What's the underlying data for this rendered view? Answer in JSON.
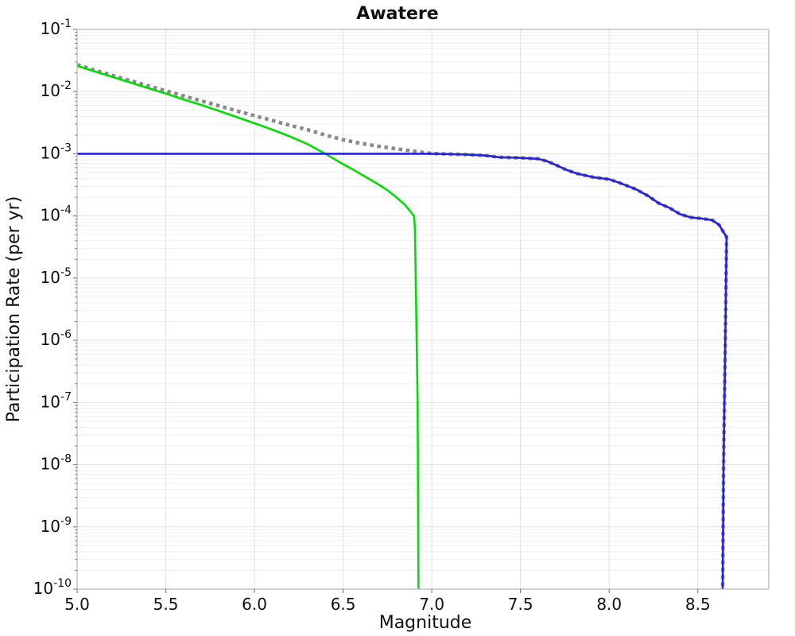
{
  "chart_data": {
    "type": "line",
    "title": "Awatere",
    "xlabel": "Magnitude",
    "ylabel": "Participation Rate (per yr)",
    "xlim": [
      5.0,
      8.9
    ],
    "ylim": [
      1e-10,
      0.1
    ],
    "y_scale": "log",
    "grid": true,
    "legend": "none",
    "x_ticks": [
      5.0,
      5.5,
      6.0,
      6.5,
      7.0,
      7.5,
      8.0,
      8.5
    ],
    "y_tick_exponents": [
      -1,
      -2,
      -3,
      -4,
      -5,
      -6,
      -7,
      -8,
      -9,
      -10
    ],
    "colors": {
      "spine": "#b4b4b4",
      "grid_major": "#e2e2e2",
      "grid_minor": "#f0f0f0",
      "tick": "#888888",
      "text": "#111111"
    },
    "series": [
      {
        "name": "total-rate-dotted",
        "color": "#8a8a8a",
        "linestyle": "dotted",
        "width": 4.6,
        "points": [
          [
            5.0,
            0.027
          ],
          [
            5.1,
            0.0221
          ],
          [
            5.2,
            0.0182
          ],
          [
            5.3,
            0.015
          ],
          [
            5.4,
            0.0124
          ],
          [
            5.5,
            0.0103
          ],
          [
            5.6,
            0.0085
          ],
          [
            5.7,
            0.0071
          ],
          [
            5.8,
            0.0059
          ],
          [
            5.9,
            0.0049
          ],
          [
            6.0,
            0.0041
          ],
          [
            6.1,
            0.00344
          ],
          [
            6.2,
            0.00287
          ],
          [
            6.3,
            0.00243
          ],
          [
            6.4,
            0.002
          ],
          [
            6.5,
            0.00168
          ],
          [
            6.55,
            0.00157
          ],
          [
            6.6,
            0.00147
          ],
          [
            6.65,
            0.00139
          ],
          [
            6.7,
            0.00132
          ],
          [
            6.75,
            0.00126
          ],
          [
            6.8,
            0.0012
          ],
          [
            6.85,
            0.00115
          ],
          [
            6.9,
            0.0011
          ],
          [
            6.95,
            0.00105
          ],
          [
            7.0,
            0.00101
          ],
          [
            7.1,
            0.00099
          ],
          [
            7.2,
            0.00097
          ],
          [
            7.3,
            0.00094
          ],
          [
            7.38,
            0.00088
          ],
          [
            7.5,
            0.00086
          ],
          [
            7.6,
            0.00083
          ],
          [
            7.65,
            0.00076
          ],
          [
            7.7,
            0.00066
          ],
          [
            7.76,
            0.00055
          ],
          [
            7.82,
            0.00048
          ],
          [
            7.91,
            0.00042
          ],
          [
            8.0,
            0.00039
          ],
          [
            8.06,
            0.00034
          ],
          [
            8.15,
            0.00027
          ],
          [
            8.22,
            0.00021
          ],
          [
            8.28,
            0.00016
          ],
          [
            8.34,
            0.000135
          ],
          [
            8.4,
            0.000107
          ],
          [
            8.46,
            9.5e-05
          ],
          [
            8.52,
            9.1e-05
          ],
          [
            8.58,
            8.6e-05
          ],
          [
            8.62,
            7.2e-05
          ],
          [
            8.65,
            5.2e-05
          ],
          [
            8.662,
            4.6e-05
          ],
          [
            8.655,
            1e-06
          ],
          [
            8.645,
            1e-08
          ],
          [
            8.64,
            1e-10
          ]
        ]
      },
      {
        "name": "gutenberg-richter-green",
        "color": "#00dd00",
        "linestyle": "solid",
        "width": 2.6,
        "points": [
          [
            5.0,
            0.026
          ],
          [
            5.1,
            0.0211
          ],
          [
            5.2,
            0.0172
          ],
          [
            5.3,
            0.014
          ],
          [
            5.4,
            0.0114
          ],
          [
            5.5,
            0.0093
          ],
          [
            5.6,
            0.0075
          ],
          [
            5.7,
            0.0061
          ],
          [
            5.8,
            0.0049
          ],
          [
            5.9,
            0.0039
          ],
          [
            6.0,
            0.0031
          ],
          [
            6.1,
            0.00245
          ],
          [
            6.2,
            0.0019
          ],
          [
            6.3,
            0.00143
          ],
          [
            6.4,
            0.001
          ],
          [
            6.5,
            0.00068
          ],
          [
            6.55,
            0.00057
          ],
          [
            6.6,
            0.00047
          ],
          [
            6.65,
            0.00039
          ],
          [
            6.7,
            0.00032
          ],
          [
            6.75,
            0.00026
          ],
          [
            6.8,
            0.0002
          ],
          [
            6.85,
            0.00015
          ],
          [
            6.9,
            0.0001
          ],
          [
            6.905,
            6e-05
          ],
          [
            6.92,
            1e-07
          ],
          [
            6.925,
            1e-10
          ]
        ]
      },
      {
        "name": "characteristic-blue",
        "color": "#2222dd",
        "linestyle": "solid",
        "width": 2.6,
        "points": [
          [
            5.0,
            0.001
          ],
          [
            7.0,
            0.001
          ],
          [
            7.1,
            0.00099
          ],
          [
            7.2,
            0.00097
          ],
          [
            7.3,
            0.00094
          ],
          [
            7.38,
            0.00088
          ],
          [
            7.5,
            0.00086
          ],
          [
            7.6,
            0.00083
          ],
          [
            7.65,
            0.00076
          ],
          [
            7.7,
            0.00066
          ],
          [
            7.76,
            0.00055
          ],
          [
            7.82,
            0.00048
          ],
          [
            7.91,
            0.00042
          ],
          [
            8.0,
            0.00039
          ],
          [
            8.06,
            0.00034
          ],
          [
            8.15,
            0.00027
          ],
          [
            8.22,
            0.00021
          ],
          [
            8.28,
            0.00016
          ],
          [
            8.34,
            0.000135
          ],
          [
            8.4,
            0.000107
          ],
          [
            8.46,
            9.5e-05
          ],
          [
            8.52,
            9.1e-05
          ],
          [
            8.58,
            8.6e-05
          ],
          [
            8.62,
            7.2e-05
          ],
          [
            8.65,
            5.2e-05
          ],
          [
            8.662,
            4.6e-05
          ],
          [
            8.655,
            1e-06
          ],
          [
            8.645,
            1e-08
          ],
          [
            8.64,
            1e-10
          ]
        ]
      }
    ]
  }
}
